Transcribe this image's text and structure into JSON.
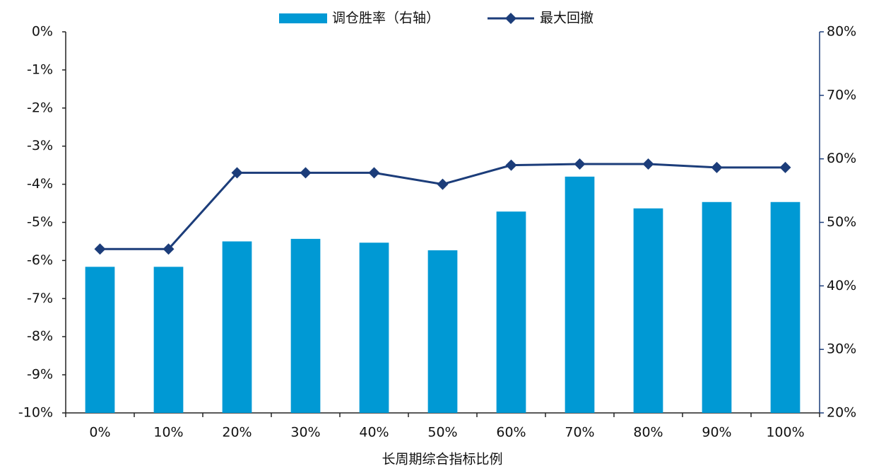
{
  "chart_data": {
    "type": "combo",
    "xlabel": "长周期综合指标比例",
    "categories": [
      "0%",
      "10%",
      "20%",
      "30%",
      "40%",
      "50%",
      "60%",
      "70%",
      "80%",
      "90%",
      "100%"
    ],
    "series": [
      {
        "name": "调仓胜率（右轴）",
        "type": "bar",
        "axis": "y2",
        "color": "#0099d4",
        "values": [
          43.0,
          43.0,
          47.0,
          47.4,
          46.8,
          45.6,
          51.7,
          57.2,
          52.2,
          53.2,
          53.2
        ]
      },
      {
        "name": "最大回撤",
        "type": "line",
        "axis": "y",
        "color": "#1c3d7a",
        "marker": "diamond",
        "values": [
          -5.7,
          -5.7,
          -3.7,
          -3.7,
          -3.7,
          -4.0,
          -3.5,
          -3.47,
          -3.47,
          -3.56,
          -3.56
        ]
      }
    ],
    "ylim": [
      -10,
      0
    ],
    "yticks": [
      {
        "value": 0,
        "label": "0%"
      },
      {
        "value": -1,
        "label": "-1%"
      },
      {
        "value": -2,
        "label": "-2%"
      },
      {
        "value": -3,
        "label": "-3%"
      },
      {
        "value": -4,
        "label": "-4%"
      },
      {
        "value": -5,
        "label": "-5%"
      },
      {
        "value": -6,
        "label": "-6%"
      },
      {
        "value": -7,
        "label": "-7%"
      },
      {
        "value": -8,
        "label": "-8%"
      },
      {
        "value": -9,
        "label": "-9%"
      },
      {
        "value": -10,
        "label": "-10%"
      }
    ],
    "y2lim": [
      20,
      80
    ],
    "y2ticks": [
      {
        "value": 80,
        "label": "80%"
      },
      {
        "value": 70,
        "label": "70%"
      },
      {
        "value": 60,
        "label": "60%"
      },
      {
        "value": 50,
        "label": "50%"
      },
      {
        "value": 40,
        "label": "40%"
      },
      {
        "value": 30,
        "label": "30%"
      },
      {
        "value": 20,
        "label": "20%"
      }
    ],
    "legend": "top"
  }
}
